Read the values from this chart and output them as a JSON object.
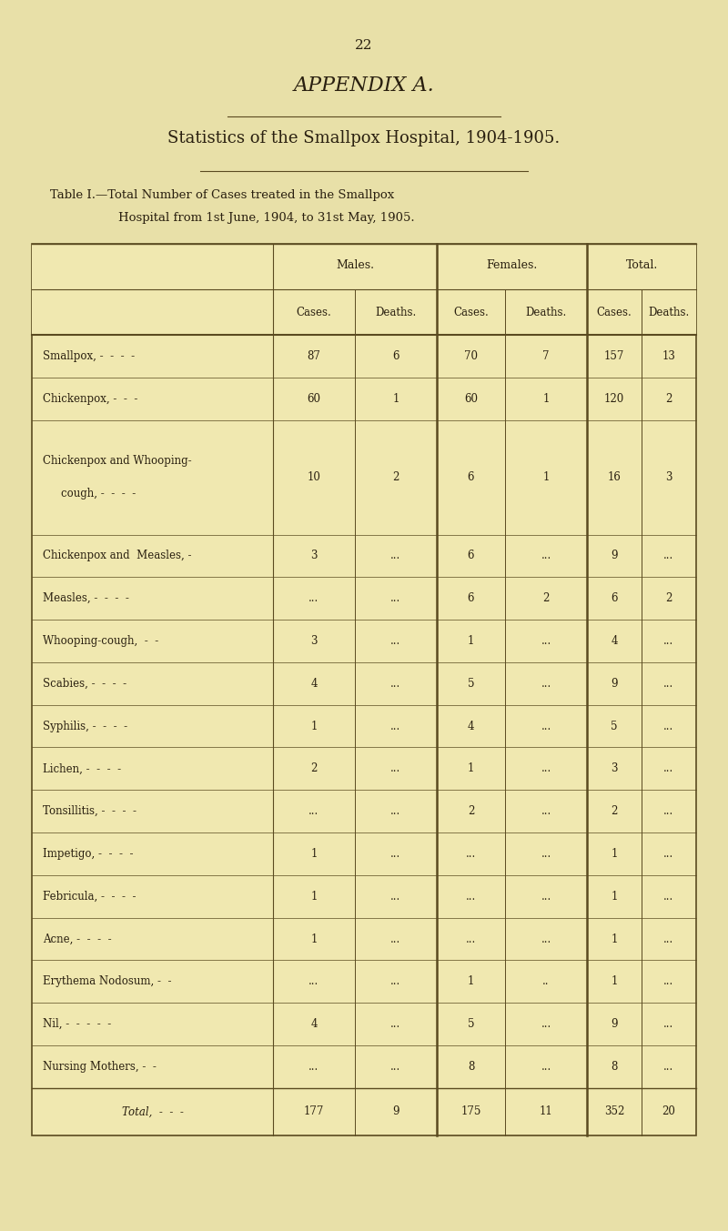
{
  "page_number": "22",
  "appendix_title": "APPENDIX A.",
  "subtitle": "Statistics of the Smallpox Hospital, 1904-1905.",
  "table_title_line1": "Table I.—Total Number of Cases treated in the Smallpox",
  "table_title_line2": "Hospital from 1st June, 1904, to 31st May, 1905.",
  "col_headers_top": [
    "Males.",
    "Females.",
    "Total."
  ],
  "col_headers_sub": [
    "Cases.",
    "Deaths.",
    "Cases.",
    "Deaths.",
    "Cases.",
    "Deaths."
  ],
  "background_color": "#e8e0a8",
  "table_bg": "#f0e8b0",
  "text_color": "#2a2010",
  "border_color": "#5a4a20",
  "rows": [
    {
      "label": "Smallpox, -  -  -  -",
      "m_cases": "87",
      "m_deaths": "6",
      "f_cases": "70",
      "f_deaths": "7",
      "t_cases": "157",
      "t_deaths": "13"
    },
    {
      "label": "Chickenpox, -  -  -",
      "m_cases": "60",
      "m_deaths": "1",
      "f_cases": "60",
      "f_deaths": "1",
      "t_cases": "120",
      "t_deaths": "2"
    },
    {
      "label": "Chickenpox and Whooping-\n    cough, -  -  -  -",
      "m_cases": "10",
      "m_deaths": "2",
      "f_cases": "6",
      "f_deaths": "1",
      "t_cases": "16",
      "t_deaths": "3"
    },
    {
      "label": "Chickenpox and  Measles, -",
      "m_cases": "3",
      "m_deaths": "...",
      "f_cases": "6",
      "f_deaths": "...",
      "t_cases": "9",
      "t_deaths": "..."
    },
    {
      "label": "Measles, -  -  -  -",
      "m_cases": "...",
      "m_deaths": "...",
      "f_cases": "6",
      "f_deaths": "2",
      "t_cases": "6",
      "t_deaths": "2"
    },
    {
      "label": "Whooping-cough,  -  -",
      "m_cases": "3",
      "m_deaths": "...",
      "f_cases": "1",
      "f_deaths": "...",
      "t_cases": "4",
      "t_deaths": "..."
    },
    {
      "label": "Scabies, -  -  -  -",
      "m_cases": "4",
      "m_deaths": "...",
      "f_cases": "5",
      "f_deaths": "...",
      "t_cases": "9",
      "t_deaths": "..."
    },
    {
      "label": "Syphilis, -  -  -  -",
      "m_cases": "1",
      "m_deaths": "...",
      "f_cases": "4",
      "f_deaths": "...",
      "t_cases": "5",
      "t_deaths": "..."
    },
    {
      "label": "Lichen, -  -  -  -",
      "m_cases": "2",
      "m_deaths": "...",
      "f_cases": "1",
      "f_deaths": "...",
      "t_cases": "3",
      "t_deaths": "..."
    },
    {
      "label": "Tonsillitis, -  -  -  -",
      "m_cases": "...",
      "m_deaths": "...",
      "f_cases": "2",
      "f_deaths": "...",
      "t_cases": "2",
      "t_deaths": "..."
    },
    {
      "label": "Impetigo, -  -  -  -",
      "m_cases": "1",
      "m_deaths": "...",
      "f_cases": "...",
      "f_deaths": "...",
      "t_cases": "1",
      "t_deaths": "..."
    },
    {
      "label": "Febricula, -  -  -  -",
      "m_cases": "1",
      "m_deaths": "...",
      "f_cases": "...",
      "f_deaths": "...",
      "t_cases": "1",
      "t_deaths": "..."
    },
    {
      "label": "Acne, -  -  -  -",
      "m_cases": "1",
      "m_deaths": "...",
      "f_cases": "...",
      "f_deaths": "...",
      "t_cases": "1",
      "t_deaths": "..."
    },
    {
      "label": "Erythema Nodosum, -  -",
      "m_cases": "...",
      "m_deaths": "...",
      "f_cases": "1",
      "f_deaths": "..",
      "t_cases": "1",
      "t_deaths": "..."
    },
    {
      "label": "Nil, -  -  -  -  -",
      "m_cases": "4",
      "m_deaths": "...",
      "f_cases": "5",
      "f_deaths": "...",
      "t_cases": "9",
      "t_deaths": "..."
    },
    {
      "label": "Nursing Mothers, -  -",
      "m_cases": "...",
      "m_deaths": "...",
      "f_cases": "8",
      "f_deaths": "...",
      "t_cases": "8",
      "t_deaths": "..."
    }
  ],
  "total_row": {
    "label": "Total,  -  -  -",
    "m_cases": "177",
    "m_deaths": "9",
    "f_cases": "175",
    "f_deaths": "11",
    "t_cases": "352",
    "t_deaths": "20"
  }
}
